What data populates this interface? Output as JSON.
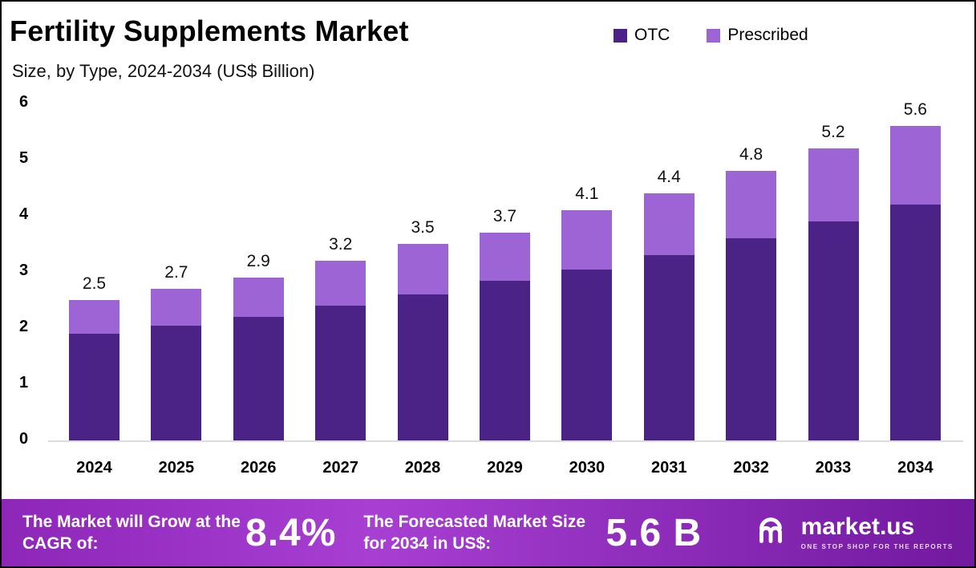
{
  "header": {
    "title": "Fertility Supplements Market",
    "subtitle": "Size, by Type, 2024-2034 (US$ Billion)"
  },
  "chart_data": {
    "type": "bar",
    "subtype": "stacked",
    "title": "Fertility Supplements Market",
    "subtitle": "Size, by Type, 2024-2034 (US$ Billion)",
    "categories": [
      "2024",
      "2025",
      "2026",
      "2027",
      "2028",
      "2029",
      "2030",
      "2031",
      "2032",
      "2033",
      "2034"
    ],
    "series": [
      {
        "name": "OTC",
        "color": "#4b2386",
        "values": [
          1.9,
          2.05,
          2.2,
          2.4,
          2.6,
          2.85,
          3.05,
          3.3,
          3.6,
          3.9,
          4.2
        ]
      },
      {
        "name": "Prescribed",
        "color": "#9c64d4",
        "values": [
          0.6,
          0.65,
          0.7,
          0.8,
          0.9,
          0.85,
          1.05,
          1.1,
          1.2,
          1.3,
          1.4
        ]
      }
    ],
    "totals": [
      2.5,
      2.7,
      2.9,
      3.2,
      3.5,
      3.7,
      4.1,
      4.4,
      4.8,
      5.2,
      5.6
    ],
    "ylim": [
      0,
      6
    ],
    "yticks": [
      0,
      1,
      2,
      3,
      4,
      5,
      6
    ],
    "xlabel": "",
    "ylabel": "",
    "grid": false,
    "legend_position": "top-right"
  },
  "footer": {
    "cagr_label": "The Market will Grow at the CAGR of:",
    "cagr_value": "8.4%",
    "forecast_label": "The Forecasted Market Size for 2034 in US$:",
    "forecast_value": "5.6 B",
    "brand": "market.us",
    "tagline": "ONE STOP SHOP FOR THE REPORTS",
    "banner_color": "#8d27b8"
  }
}
